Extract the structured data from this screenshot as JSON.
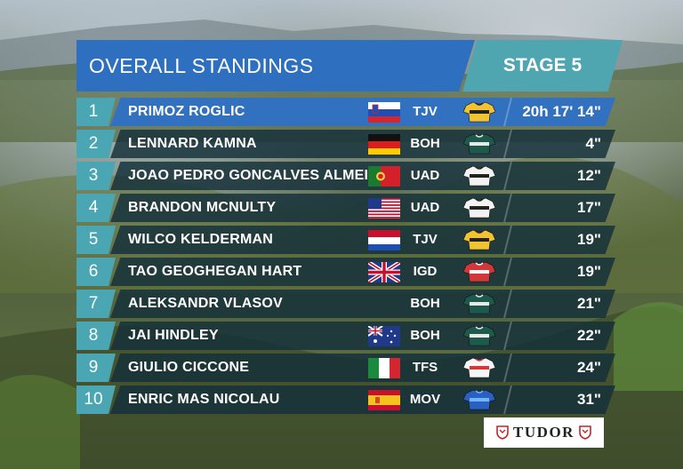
{
  "header": {
    "title": "OVERALL STANDINGS",
    "stage": "STAGE 5"
  },
  "colors": {
    "title_bg": "#2f6fc0",
    "stage_bg": "#4fa5b0",
    "rank_bg": "#4aa6b3",
    "row_bg": "#14303a",
    "leader_bg": "#3271bf"
  },
  "standings": [
    {
      "rank": "1",
      "name": "PRIMOZ ROGLIC",
      "flag": "slovenia",
      "team": "TJV",
      "jersey": "yellow-black",
      "time": "20h 17' 14\""
    },
    {
      "rank": "2",
      "name": "LENNARD KAMNA",
      "flag": "germany",
      "team": "BOH",
      "jersey": "green-black",
      "time": "4\""
    },
    {
      "rank": "3",
      "name": "JOAO PEDRO GONCALVES ALMEIDA",
      "flag": "portugal",
      "team": "UAD",
      "jersey": "white-black",
      "time": "12\""
    },
    {
      "rank": "4",
      "name": "BRANDON MCNULTY",
      "flag": "usa",
      "team": "UAD",
      "jersey": "white-black",
      "time": "17\""
    },
    {
      "rank": "5",
      "name": "WILCO KELDERMAN",
      "flag": "netherlands",
      "team": "TJV",
      "jersey": "yellow-black",
      "time": "19\""
    },
    {
      "rank": "6",
      "name": "TAO GEOGHEGAN HART",
      "flag": "uk",
      "team": "IGD",
      "jersey": "red",
      "time": "19\""
    },
    {
      "rank": "7",
      "name": "ALEKSANDR VLASOV",
      "flag": "none",
      "team": "BOH",
      "jersey": "green-black",
      "time": "21\""
    },
    {
      "rank": "8",
      "name": "JAI HINDLEY",
      "flag": "australia",
      "team": "BOH",
      "jersey": "green-black",
      "time": "22\""
    },
    {
      "rank": "9",
      "name": "GIULIO CICCONE",
      "flag": "italy",
      "team": "TFS",
      "jersey": "white-red",
      "time": "24\""
    },
    {
      "rank": "10",
      "name": "ENRIC MAS NICOLAU",
      "flag": "spain",
      "team": "MOV",
      "jersey": "blue",
      "time": "31\""
    }
  ],
  "sponsor": {
    "name": "TUDOR"
  }
}
